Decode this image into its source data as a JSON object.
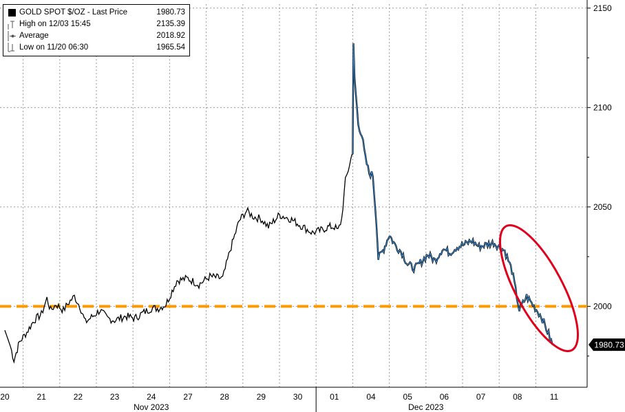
{
  "chart_data": {
    "type": "line",
    "series": [
      {
        "name": "GOLD SPOT $/OZ",
        "color": "#000000",
        "color_recent": "#3a86c8",
        "x": [
          "20",
          "21",
          "22",
          "23",
          "24",
          "27",
          "28",
          "29",
          "30",
          "01",
          "04",
          "05",
          "06",
          "07",
          "08",
          "11"
        ],
        "points": [
          [
            0.0,
            1988
          ],
          [
            0.15,
            1980
          ],
          [
            0.25,
            1973
          ],
          [
            0.4,
            1982
          ],
          [
            0.6,
            1987
          ],
          [
            0.8,
            1993
          ],
          [
            1.0,
            1996
          ],
          [
            1.15,
            2004
          ],
          [
            1.25,
            1998
          ],
          [
            1.4,
            2001
          ],
          [
            1.6,
            1998
          ],
          [
            1.75,
            2002
          ],
          [
            1.9,
            2005
          ],
          [
            2.05,
            2000
          ],
          [
            2.2,
            1992
          ],
          [
            2.4,
            1995
          ],
          [
            2.6,
            1998
          ],
          [
            2.8,
            1994
          ],
          [
            3.0,
            1993
          ],
          [
            3.3,
            1995
          ],
          [
            3.55,
            1994
          ],
          [
            3.8,
            1997
          ],
          [
            4.0,
            1999
          ],
          [
            4.2,
            1999
          ],
          [
            4.4,
            2001
          ],
          [
            4.7,
            2013
          ],
          [
            5.0,
            2014
          ],
          [
            5.3,
            2011
          ],
          [
            5.6,
            2015
          ],
          [
            5.95,
            2014
          ],
          [
            6.15,
            2028
          ],
          [
            6.4,
            2043
          ],
          [
            6.6,
            2048
          ],
          [
            6.8,
            2045
          ],
          [
            7.0,
            2044
          ],
          [
            7.2,
            2040
          ],
          [
            7.5,
            2046
          ],
          [
            7.8,
            2044
          ],
          [
            8.05,
            2041
          ],
          [
            8.4,
            2037
          ],
          [
            8.6,
            2038
          ],
          [
            8.85,
            2040
          ],
          [
            9.0,
            2040
          ],
          [
            9.1,
            2038
          ],
          [
            9.2,
            2044
          ],
          [
            9.3,
            2063
          ],
          [
            9.45,
            2074
          ],
          [
            9.5,
            2078
          ],
          [
            9.52,
            2131
          ],
          [
            9.55,
            2115
          ],
          [
            9.65,
            2092
          ],
          [
            9.75,
            2086
          ],
          [
            9.85,
            2074
          ],
          [
            9.95,
            2067
          ],
          [
            10.05,
            2066
          ],
          [
            10.15,
            2042
          ],
          [
            10.2,
            2024
          ],
          [
            10.35,
            2029
          ],
          [
            10.5,
            2036
          ],
          [
            10.65,
            2031
          ],
          [
            10.85,
            2027
          ],
          [
            11.0,
            2021
          ],
          [
            11.2,
            2019
          ],
          [
            11.35,
            2022
          ],
          [
            11.55,
            2026
          ],
          [
            11.75,
            2023
          ],
          [
            11.95,
            2029
          ],
          [
            12.15,
            2027
          ],
          [
            12.35,
            2030
          ],
          [
            12.55,
            2031
          ],
          [
            12.75,
            2033
          ],
          [
            12.95,
            2030
          ],
          [
            13.15,
            2031
          ],
          [
            13.35,
            2032
          ],
          [
            13.5,
            2030
          ],
          [
            13.65,
            2028
          ],
          [
            13.85,
            2018
          ],
          [
            13.95,
            2008
          ],
          [
            14.05,
            1998
          ],
          [
            14.25,
            2005
          ],
          [
            14.45,
            2000
          ],
          [
            14.65,
            1995
          ],
          [
            14.85,
            1986
          ],
          [
            14.95,
            1981
          ],
          [
            15.0,
            1980.73
          ]
        ],
        "recent_from_index": 48
      }
    ],
    "reference_lines": [
      {
        "value": 2000,
        "color": "#ff9900",
        "style": "dashed"
      }
    ],
    "yticks": [
      2000,
      2050,
      2100,
      2150
    ],
    "ylim": [
      1960,
      2152
    ],
    "month_labels": [
      {
        "label": "Nov 2023",
        "at": 4.0
      },
      {
        "label": "Dec 2023",
        "at": 11.5
      }
    ],
    "last_price_tag": "1980.73",
    "annotation": {
      "shape": "ellipse",
      "color": "#e0001b"
    },
    "legend": {
      "placement": "top-left",
      "rows": [
        {
          "label": "GOLD SPOT $/OZ - Last Price",
          "value": "1980.73"
        },
        {
          "label": "High on 12/03 15:45",
          "value": "2135.39"
        },
        {
          "label": "Average",
          "value": "2018.92"
        },
        {
          "label": "Low on 11/20 06:30",
          "value": "1965.54"
        }
      ]
    },
    "grid": true
  }
}
